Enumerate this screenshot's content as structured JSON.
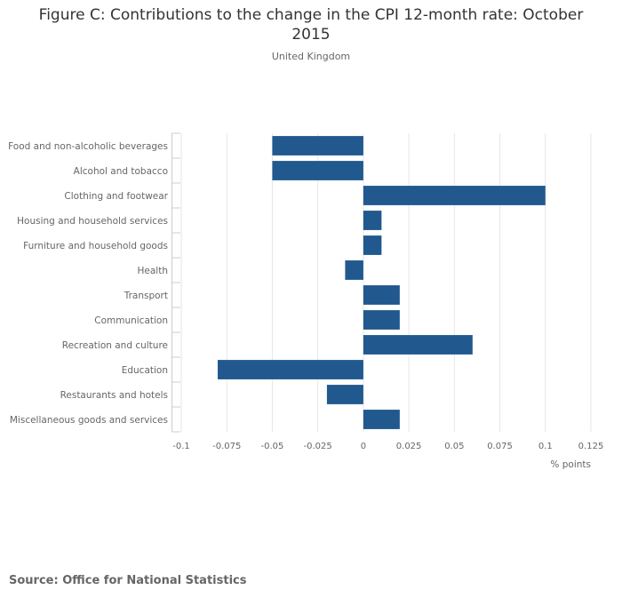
{
  "chart_data": {
    "type": "bar",
    "orientation": "horizontal",
    "title": "Figure C: Contributions to the change in the CPI 12-month rate: October 2015",
    "subtitle": "United Kingdom",
    "xlabel": "% points",
    "ylabel": "",
    "xlim": [
      -0.1,
      0.125
    ],
    "xticks": [
      "-0.1",
      "-0.075",
      "-0.05",
      "-0.025",
      "0",
      "0.025",
      "0.05",
      "0.075",
      "0.1",
      "0.125"
    ],
    "xtick_values": [
      -0.1,
      -0.075,
      -0.05,
      -0.025,
      0,
      0.025,
      0.05,
      0.075,
      0.1,
      0.125
    ],
    "grid": true,
    "categories": [
      "Food and non-alcoholic beverages",
      "Alcohol and tobacco",
      "Clothing and footwear",
      "Housing and household services",
      "Furniture and household goods",
      "Health",
      "Transport",
      "Communication",
      "Recreation and culture",
      "Education",
      "Restaurants and hotels",
      "Miscellaneous goods and services"
    ],
    "values": [
      -0.05,
      -0.05,
      0.1,
      0.01,
      0.01,
      -0.01,
      0.02,
      0.02,
      0.06,
      -0.08,
      -0.02,
      0.02
    ],
    "bar_color": "#21598f",
    "grid_color": "#e6e6e6",
    "axis_color": "#cccccc"
  },
  "source": "Source: Office for National Statistics"
}
